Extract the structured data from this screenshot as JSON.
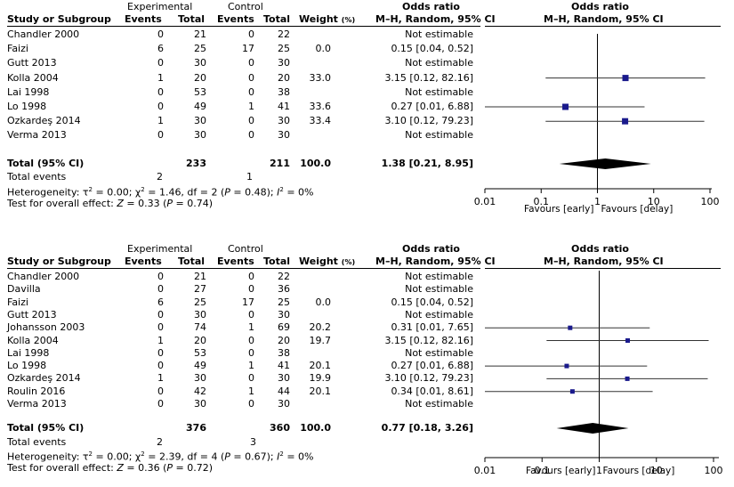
{
  "chart_data": [
    {
      "type": "forest",
      "headers": {
        "group_exp": "Experimental",
        "group_ctrl": "Control",
        "study": "Study or Subgroup",
        "events": "Events",
        "total": "Total",
        "weight": "Weight",
        "weight_unit": "(%)",
        "or_title": "Odds ratio",
        "or_method": "M–H, Random, 95% CI",
        "plot_title": "Odds ratio",
        "plot_method": "M–H, Random, 95% CI"
      },
      "studies": [
        {
          "name": "Chandler 2000",
          "exp_events": "0",
          "exp_total": "21",
          "ctrl_events": "0",
          "ctrl_total": "22",
          "weight": "",
          "ci_text": "Not estimable",
          "or": null,
          "lo": null,
          "hi": null
        },
        {
          "name": "Faizi",
          "exp_events": "6",
          "exp_total": "25",
          "ctrl_events": "17",
          "ctrl_total": "25",
          "weight": "0.0",
          "ci_text": "0.15 [0.04, 0.52]",
          "or": null,
          "lo": null,
          "hi": null
        },
        {
          "name": "Gutt 2013",
          "exp_events": "0",
          "exp_total": "30",
          "ctrl_events": "0",
          "ctrl_total": "30",
          "weight": "",
          "ci_text": "Not estimable",
          "or": null,
          "lo": null,
          "hi": null
        },
        {
          "name": "Kolla 2004",
          "exp_events": "1",
          "exp_total": "20",
          "ctrl_events": "0",
          "ctrl_total": "20",
          "weight": "33.0",
          "ci_text": "3.15 [0.12, 82.16]",
          "or": 3.15,
          "lo": 0.12,
          "hi": 82.16
        },
        {
          "name": "Lai 1998",
          "exp_events": "0",
          "exp_total": "53",
          "ctrl_events": "0",
          "ctrl_total": "38",
          "weight": "",
          "ci_text": "Not estimable",
          "or": null,
          "lo": null,
          "hi": null
        },
        {
          "name": "Lo 1998",
          "exp_events": "0",
          "exp_total": "49",
          "ctrl_events": "1",
          "ctrl_total": "41",
          "weight": "33.6",
          "ci_text": "0.27 [0.01, 6.88]",
          "or": 0.27,
          "lo": 0.01,
          "hi": 6.88
        },
        {
          "name": "Ozkardeş 2014",
          "exp_events": "1",
          "exp_total": "30",
          "ctrl_events": "0",
          "ctrl_total": "30",
          "weight": "33.4",
          "ci_text": "3.10 [0.12, 79.23]",
          "or": 3.1,
          "lo": 0.12,
          "hi": 79.23
        },
        {
          "name": "Verma 2013",
          "exp_events": "0",
          "exp_total": "30",
          "ctrl_events": "0",
          "ctrl_total": "30",
          "weight": "",
          "ci_text": "Not estimable",
          "or": null,
          "lo": null,
          "hi": null
        }
      ],
      "total": {
        "label": "Total (95% CI)",
        "exp_total": "233",
        "ctrl_total": "211",
        "weight": "100.0",
        "ci_text": "1.38 [0.21, 8.95]",
        "or": 1.38,
        "lo": 0.21,
        "hi": 8.95
      },
      "total_events": {
        "label": "Total events",
        "exp": "2",
        "ctrl": "1"
      },
      "heterogeneity": {
        "label": "Heterogeneity: ",
        "tau": "τ",
        "tau_value": " = 0.00; ",
        "chi": "χ",
        "chi_value": " = 1.46, df = 2 (",
        "p": "P",
        "p_value": " = 0.48); ",
        "i": "I",
        "i_value": " = 0%",
        "sup": "2"
      },
      "overall": {
        "label": "Test for overall effect: ",
        "z": "Z",
        "z_value": " = 0.33 (",
        "p": "P",
        "p_value": " = 0.74)"
      },
      "axis": {
        "ticks": [
          0.01,
          0.1,
          1,
          10,
          100
        ],
        "tick_labels": [
          "0.01",
          "0.1",
          "1",
          "10",
          "100"
        ],
        "scale": "log",
        "xlim": [
          0.01,
          100
        ],
        "favours_left": "Favours [early]",
        "favours_right": "Favours [delay]"
      }
    },
    {
      "type": "forest",
      "headers": {
        "group_exp": "Experimental",
        "group_ctrl": "Control",
        "study": "Study or Subgroup",
        "events": "Events",
        "total": "Total",
        "weight": "Weight",
        "weight_unit": "(%)",
        "or_title": "Odds ratio",
        "or_method": "M–H, Random, 95% CI",
        "plot_title": "Odds ratio",
        "plot_method": "M–H, Random, 95% CI"
      },
      "studies": [
        {
          "name": "Chandler 2000",
          "exp_events": "0",
          "exp_total": "21",
          "ctrl_events": "0",
          "ctrl_total": "22",
          "weight": "",
          "ci_text": "Not estimable",
          "or": null,
          "lo": null,
          "hi": null
        },
        {
          "name": "Davilla",
          "exp_events": "0",
          "exp_total": "27",
          "ctrl_events": "0",
          "ctrl_total": "36",
          "weight": "",
          "ci_text": "Not estimable",
          "or": null,
          "lo": null,
          "hi": null
        },
        {
          "name": "Faizi",
          "exp_events": "6",
          "exp_total": "25",
          "ctrl_events": "17",
          "ctrl_total": "25",
          "weight": "0.0",
          "ci_text": "0.15 [0.04, 0.52]",
          "or": null,
          "lo": null,
          "hi": null
        },
        {
          "name": "Gutt 2013",
          "exp_events": "0",
          "exp_total": "30",
          "ctrl_events": "0",
          "ctrl_total": "30",
          "weight": "",
          "ci_text": "Not estimable",
          "or": null,
          "lo": null,
          "hi": null
        },
        {
          "name": "Johansson 2003",
          "exp_events": "0",
          "exp_total": "74",
          "ctrl_events": "1",
          "ctrl_total": "69",
          "weight": "20.2",
          "ci_text": "0.31 [0.01, 7.65]",
          "or": 0.31,
          "lo": 0.01,
          "hi": 7.65
        },
        {
          "name": "Kolla 2004",
          "exp_events": "1",
          "exp_total": "20",
          "ctrl_events": "0",
          "ctrl_total": "20",
          "weight": "19.7",
          "ci_text": "3.15 [0.12, 82.16]",
          "or": 3.15,
          "lo": 0.12,
          "hi": 82.16
        },
        {
          "name": "Lai 1998",
          "exp_events": "0",
          "exp_total": "53",
          "ctrl_events": "0",
          "ctrl_total": "38",
          "weight": "",
          "ci_text": "Not estimable",
          "or": null,
          "lo": null,
          "hi": null
        },
        {
          "name": "Lo 1998",
          "exp_events": "0",
          "exp_total": "49",
          "ctrl_events": "1",
          "ctrl_total": "41",
          "weight": "20.1",
          "ci_text": "0.27 [0.01, 6.88]",
          "or": 0.27,
          "lo": 0.01,
          "hi": 6.88
        },
        {
          "name": "Ozkardeş 2014",
          "exp_events": "1",
          "exp_total": "30",
          "ctrl_events": "0",
          "ctrl_total": "30",
          "weight": "19.9",
          "ci_text": "3.10 [0.12, 79.23]",
          "or": 3.1,
          "lo": 0.12,
          "hi": 79.23
        },
        {
          "name": "Roulin 2016",
          "exp_events": "0",
          "exp_total": "42",
          "ctrl_events": "1",
          "ctrl_total": "44",
          "weight": "20.1",
          "ci_text": "0.34 [0.01, 8.61]",
          "or": 0.34,
          "lo": 0.01,
          "hi": 8.61
        },
        {
          "name": "Verma 2013",
          "exp_events": "0",
          "exp_total": "30",
          "ctrl_events": "0",
          "ctrl_total": "30",
          "weight": "",
          "ci_text": "Not estimable",
          "or": null,
          "lo": null,
          "hi": null
        }
      ],
      "total": {
        "label": "Total (95% CI)",
        "exp_total": "376",
        "ctrl_total": "360",
        "weight": "100.0",
        "ci_text": "0.77 [0.18, 3.26]",
        "or": 0.77,
        "lo": 0.18,
        "hi": 3.26
      },
      "total_events": {
        "label": "Total events",
        "exp": "2",
        "ctrl": "3"
      },
      "heterogeneity": {
        "label": "Heterogeneity: ",
        "tau": "τ",
        "tau_value": " = 0.00; ",
        "chi": "χ",
        "chi_value": " = 2.39, df = 4 (",
        "p": "P",
        "p_value": " = 0.67); ",
        "i": "I",
        "i_value": " = 0%",
        "sup": "2"
      },
      "overall": {
        "label": "Test for overall effect: ",
        "z": "Z",
        "z_value": " = 0.36 (",
        "p": "P",
        "p_value": " = 0.72)"
      },
      "axis": {
        "ticks": [
          0.01,
          0.1,
          1,
          10,
          100
        ],
        "tick_labels": [
          "0.01",
          "0.1",
          "1",
          "10",
          "100"
        ],
        "scale": "log",
        "xlim": [
          0.01,
          100
        ],
        "favours_left": "Favours [early]",
        "favours_right": "Favours [delay]"
      }
    }
  ],
  "colors": {
    "marker": "#1a1a8c",
    "ink": "#000000"
  }
}
